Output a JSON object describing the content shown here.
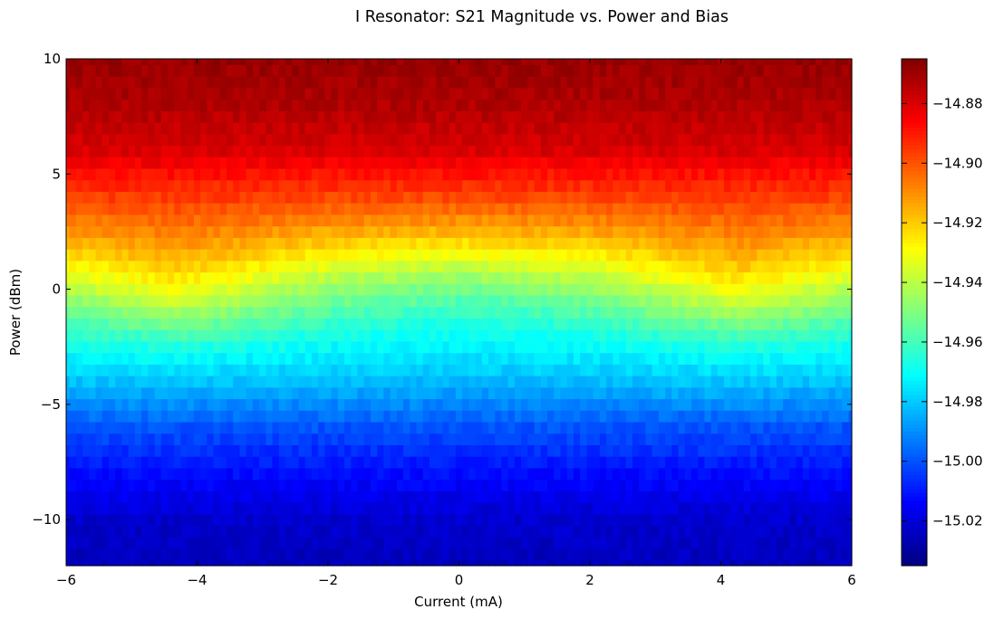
{
  "chart_data": {
    "type": "heatmap",
    "title": "I Resonator: S21 Magnitude vs. Power and Bias",
    "xlabel": "Current (mA)",
    "ylabel": "Power (dBm)",
    "xlim": [
      -6,
      6
    ],
    "ylim": [
      -12,
      10
    ],
    "xticks": [
      -6,
      -4,
      -2,
      0,
      2,
      4,
      6
    ],
    "yticks": [
      -10,
      -5,
      0,
      5,
      10
    ],
    "colormap": "jet",
    "grid": false,
    "colorbar": {
      "range": [
        -15.035,
        -14.865
      ],
      "ticks": [
        -15.02,
        -15.0,
        -14.98,
        -14.96,
        -14.94,
        -14.92,
        -14.9,
        -14.88
      ]
    },
    "grid_resolution": {
      "current_steps": 121,
      "power_steps": 45,
      "power_step_dbm": 0.5
    },
    "power_profile": {
      "power_dbm": [
        -12,
        -10,
        -8,
        -6,
        -4,
        -2,
        -1,
        0,
        1,
        2,
        3,
        4,
        5,
        6,
        8,
        10
      ],
      "s21_db": [
        -15.025,
        -15.022,
        -15.012,
        -15.0,
        -14.982,
        -14.966,
        -14.955,
        -14.943,
        -14.93,
        -14.918,
        -14.907,
        -14.897,
        -14.889,
        -14.88,
        -14.873,
        -14.869
      ]
    },
    "bias_shift": {
      "note": "Transition region near 0 dBm shifts with current: lowest near +/-4.3 mA, highest near 0 mA",
      "current_ma": [
        -6,
        -4.3,
        -2,
        0,
        2,
        4.3,
        6
      ],
      "power_offset_db": [
        -0.1,
        -1.0,
        0.3,
        0.8,
        0.3,
        -1.0,
        -0.1
      ]
    }
  }
}
